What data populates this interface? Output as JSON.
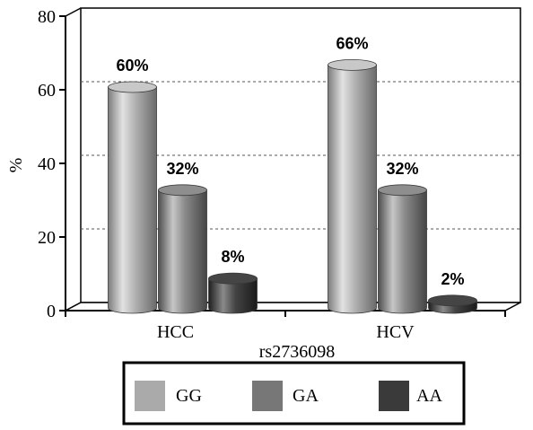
{
  "chart_data": {
    "type": "bar",
    "categories": [
      "HCC",
      "HCV"
    ],
    "series": [
      {
        "name": "GG",
        "values": [
          60,
          66
        ],
        "labels": [
          "60%",
          "66%"
        ]
      },
      {
        "name": "GA",
        "values": [
          32,
          32
        ],
        "labels": [
          "32%",
          "32%"
        ]
      },
      {
        "name": "AA",
        "values": [
          8,
          2
        ],
        "labels": [
          "8%",
          "2%"
        ]
      }
    ],
    "xlabel": "rs2736098",
    "ylabel": "%",
    "ylim": [
      0,
      80
    ],
    "yticks": [
      "0",
      "20",
      "40",
      "60",
      "80"
    ],
    "gridlines": [
      20,
      40,
      60
    ],
    "legend_position": "bottom",
    "colors": {
      "GG": "#aaaaaa",
      "GA": "#777777",
      "AA": "#3a3a3a"
    }
  }
}
